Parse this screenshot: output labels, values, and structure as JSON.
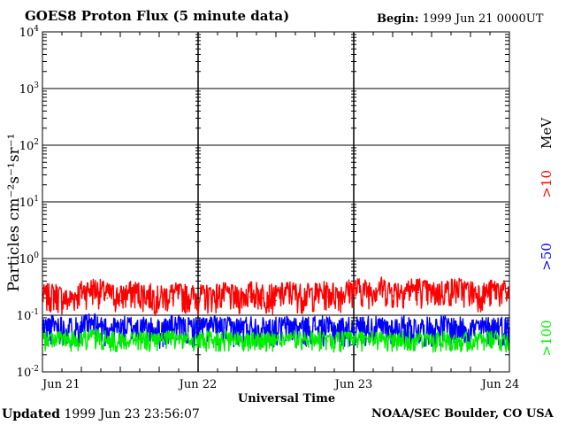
{
  "header": {
    "title": "GOES8 Proton Flux (5 minute data)",
    "begin_label": "Begin:",
    "begin_value": "1999 Jun 21 0000UT"
  },
  "footer": {
    "updated_label": "Updated",
    "updated_value": "1999 Jun 23 23:56:07",
    "credit": "NOAA/SEC Boulder, CO USA"
  },
  "chart_data": {
    "type": "line",
    "title": "GOES8 Proton Flux (5 minute data)",
    "xlabel": "Universal Time",
    "ylabel": "Particles cm⁻²s⁻¹sr⁻¹",
    "yscale": "log",
    "ylim": [
      0.01,
      10000
    ],
    "xlim": [
      0,
      72
    ],
    "x_unit": "hours since 1999 Jun 21 00:00 UT",
    "x_ticks": [
      {
        "value": 0,
        "label": "Jun 21"
      },
      {
        "value": 24,
        "label": "Jun 22"
      },
      {
        "value": 48,
        "label": "Jun 23"
      },
      {
        "value": 72,
        "label": "Jun 24"
      }
    ],
    "y_ticks": [
      {
        "value": 0.01,
        "base": "10",
        "exp": "-2"
      },
      {
        "value": 0.1,
        "base": "10",
        "exp": "-1"
      },
      {
        "value": 1,
        "base": "10",
        "exp": "0"
      },
      {
        "value": 10,
        "base": "10",
        "exp": "1"
      },
      {
        "value": 100,
        "base": "10",
        "exp": "2"
      },
      {
        "value": 1000,
        "base": "10",
        "exp": "3"
      },
      {
        "value": 10000,
        "base": "10",
        "exp": "4"
      }
    ],
    "grid": true,
    "legend": {
      "placement": "right",
      "unit": "MeV",
      "entries": [
        {
          "label": ">10",
          "color": "#ff0000"
        },
        {
          "label": ">50",
          "color": "#0000ff"
        },
        {
          "label": ">100",
          "color": "#00ee00"
        }
      ]
    },
    "series": [
      {
        "name": ">10 MeV",
        "color": "#ff0000",
        "x": [
          0,
          2,
          4,
          6,
          8,
          10,
          12,
          14,
          16,
          18,
          20,
          22,
          24,
          26,
          28,
          30,
          32,
          34,
          36,
          38,
          40,
          42,
          44,
          46,
          48,
          50,
          52,
          54,
          56,
          58,
          60,
          62,
          64,
          66,
          68,
          70,
          72
        ],
        "y": [
          0.18,
          0.2,
          0.15,
          0.22,
          0.25,
          0.2,
          0.18,
          0.22,
          0.2,
          0.17,
          0.2,
          0.19,
          0.18,
          0.19,
          0.2,
          0.17,
          0.21,
          0.2,
          0.18,
          0.22,
          0.19,
          0.2,
          0.21,
          0.2,
          0.25,
          0.23,
          0.26,
          0.22,
          0.24,
          0.25,
          0.2,
          0.23,
          0.25,
          0.22,
          0.2,
          0.24,
          0.2
        ]
      },
      {
        "name": ">50 MeV",
        "color": "#0000ff",
        "x": [
          0,
          2,
          4,
          6,
          8,
          10,
          12,
          14,
          16,
          18,
          20,
          22,
          24,
          26,
          28,
          30,
          32,
          34,
          36,
          38,
          40,
          42,
          44,
          46,
          48,
          50,
          52,
          54,
          56,
          58,
          60,
          62,
          64,
          66,
          68,
          70,
          72
        ],
        "y": [
          0.06,
          0.07,
          0.06,
          0.065,
          0.07,
          0.06,
          0.06,
          0.065,
          0.06,
          0.055,
          0.065,
          0.06,
          0.06,
          0.065,
          0.06,
          0.06,
          0.065,
          0.06,
          0.06,
          0.065,
          0.06,
          0.065,
          0.06,
          0.06,
          0.06,
          0.065,
          0.06,
          0.06,
          0.065,
          0.06,
          0.06,
          0.065,
          0.06,
          0.06,
          0.06,
          0.065,
          0.06
        ]
      },
      {
        "name": ">100 MeV",
        "color": "#00ee00",
        "x": [
          0,
          2,
          4,
          6,
          8,
          10,
          12,
          14,
          16,
          18,
          20,
          22,
          24,
          26,
          28,
          30,
          32,
          34,
          36,
          38,
          40,
          42,
          44,
          46,
          48,
          50,
          52,
          54,
          56,
          58,
          60,
          62,
          64,
          66,
          68,
          70,
          72
        ],
        "y": [
          0.035,
          0.04,
          0.035,
          0.038,
          0.04,
          0.036,
          0.035,
          0.038,
          0.036,
          0.034,
          0.038,
          0.036,
          0.035,
          0.037,
          0.036,
          0.035,
          0.038,
          0.036,
          0.035,
          0.038,
          0.036,
          0.037,
          0.035,
          0.036,
          0.036,
          0.038,
          0.036,
          0.035,
          0.037,
          0.036,
          0.035,
          0.038,
          0.036,
          0.035,
          0.036,
          0.037,
          0.035
        ]
      }
    ]
  }
}
